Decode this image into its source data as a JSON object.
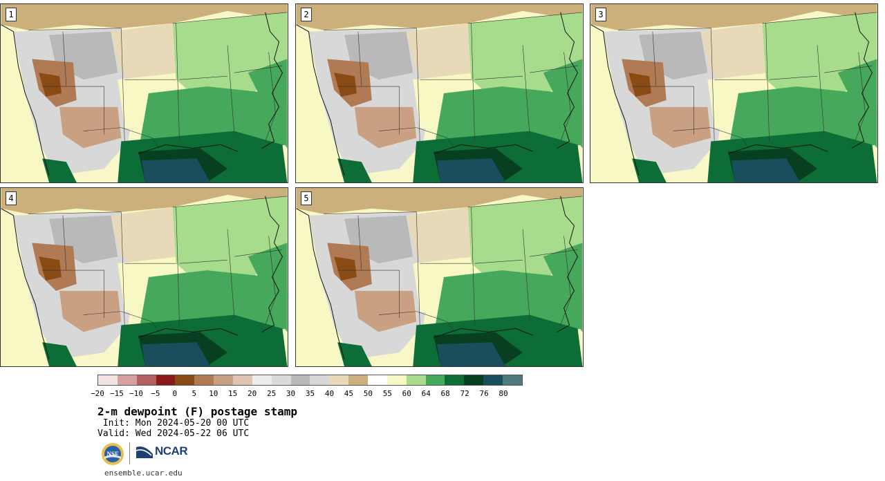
{
  "panels": [
    {
      "label": "1"
    },
    {
      "label": "2"
    },
    {
      "label": "3"
    },
    {
      "label": "4"
    },
    {
      "label": "5"
    }
  ],
  "colorbar": {
    "colors": [
      "#f3e4e4",
      "#d6a0a0",
      "#b56060",
      "#8c1a1a",
      "#8a4a14",
      "#b07a54",
      "#c9a082",
      "#dfc4b4",
      "#ededed",
      "#dadada",
      "#b9b9b9",
      "#d8d8d8",
      "#e8d9b8",
      "#ccb07c",
      "#ffffff",
      "#f8f8c4",
      "#a6dc8c",
      "#45a85a",
      "#0c6e36",
      "#073f20",
      "#1a4e5c",
      "#4e7a7c"
    ],
    "ticks": [
      "−20",
      "−15",
      "−10",
      "−5",
      "0",
      "5",
      "10",
      "15",
      "20",
      "25",
      "30",
      "35",
      "40",
      "45",
      "50",
      "55",
      "60",
      "64",
      "68",
      "72",
      "76",
      "80"
    ]
  },
  "title": "2-m dewpoint (F) postage stamp",
  "init": " Init: Mon 2024-05-20 00 UTC",
  "valid": "Valid: Wed 2024-05-22 06 UTC",
  "logos": {
    "nsf": "NSF",
    "ncar": "NCAR"
  },
  "site": "ensemble.ucar.edu"
}
